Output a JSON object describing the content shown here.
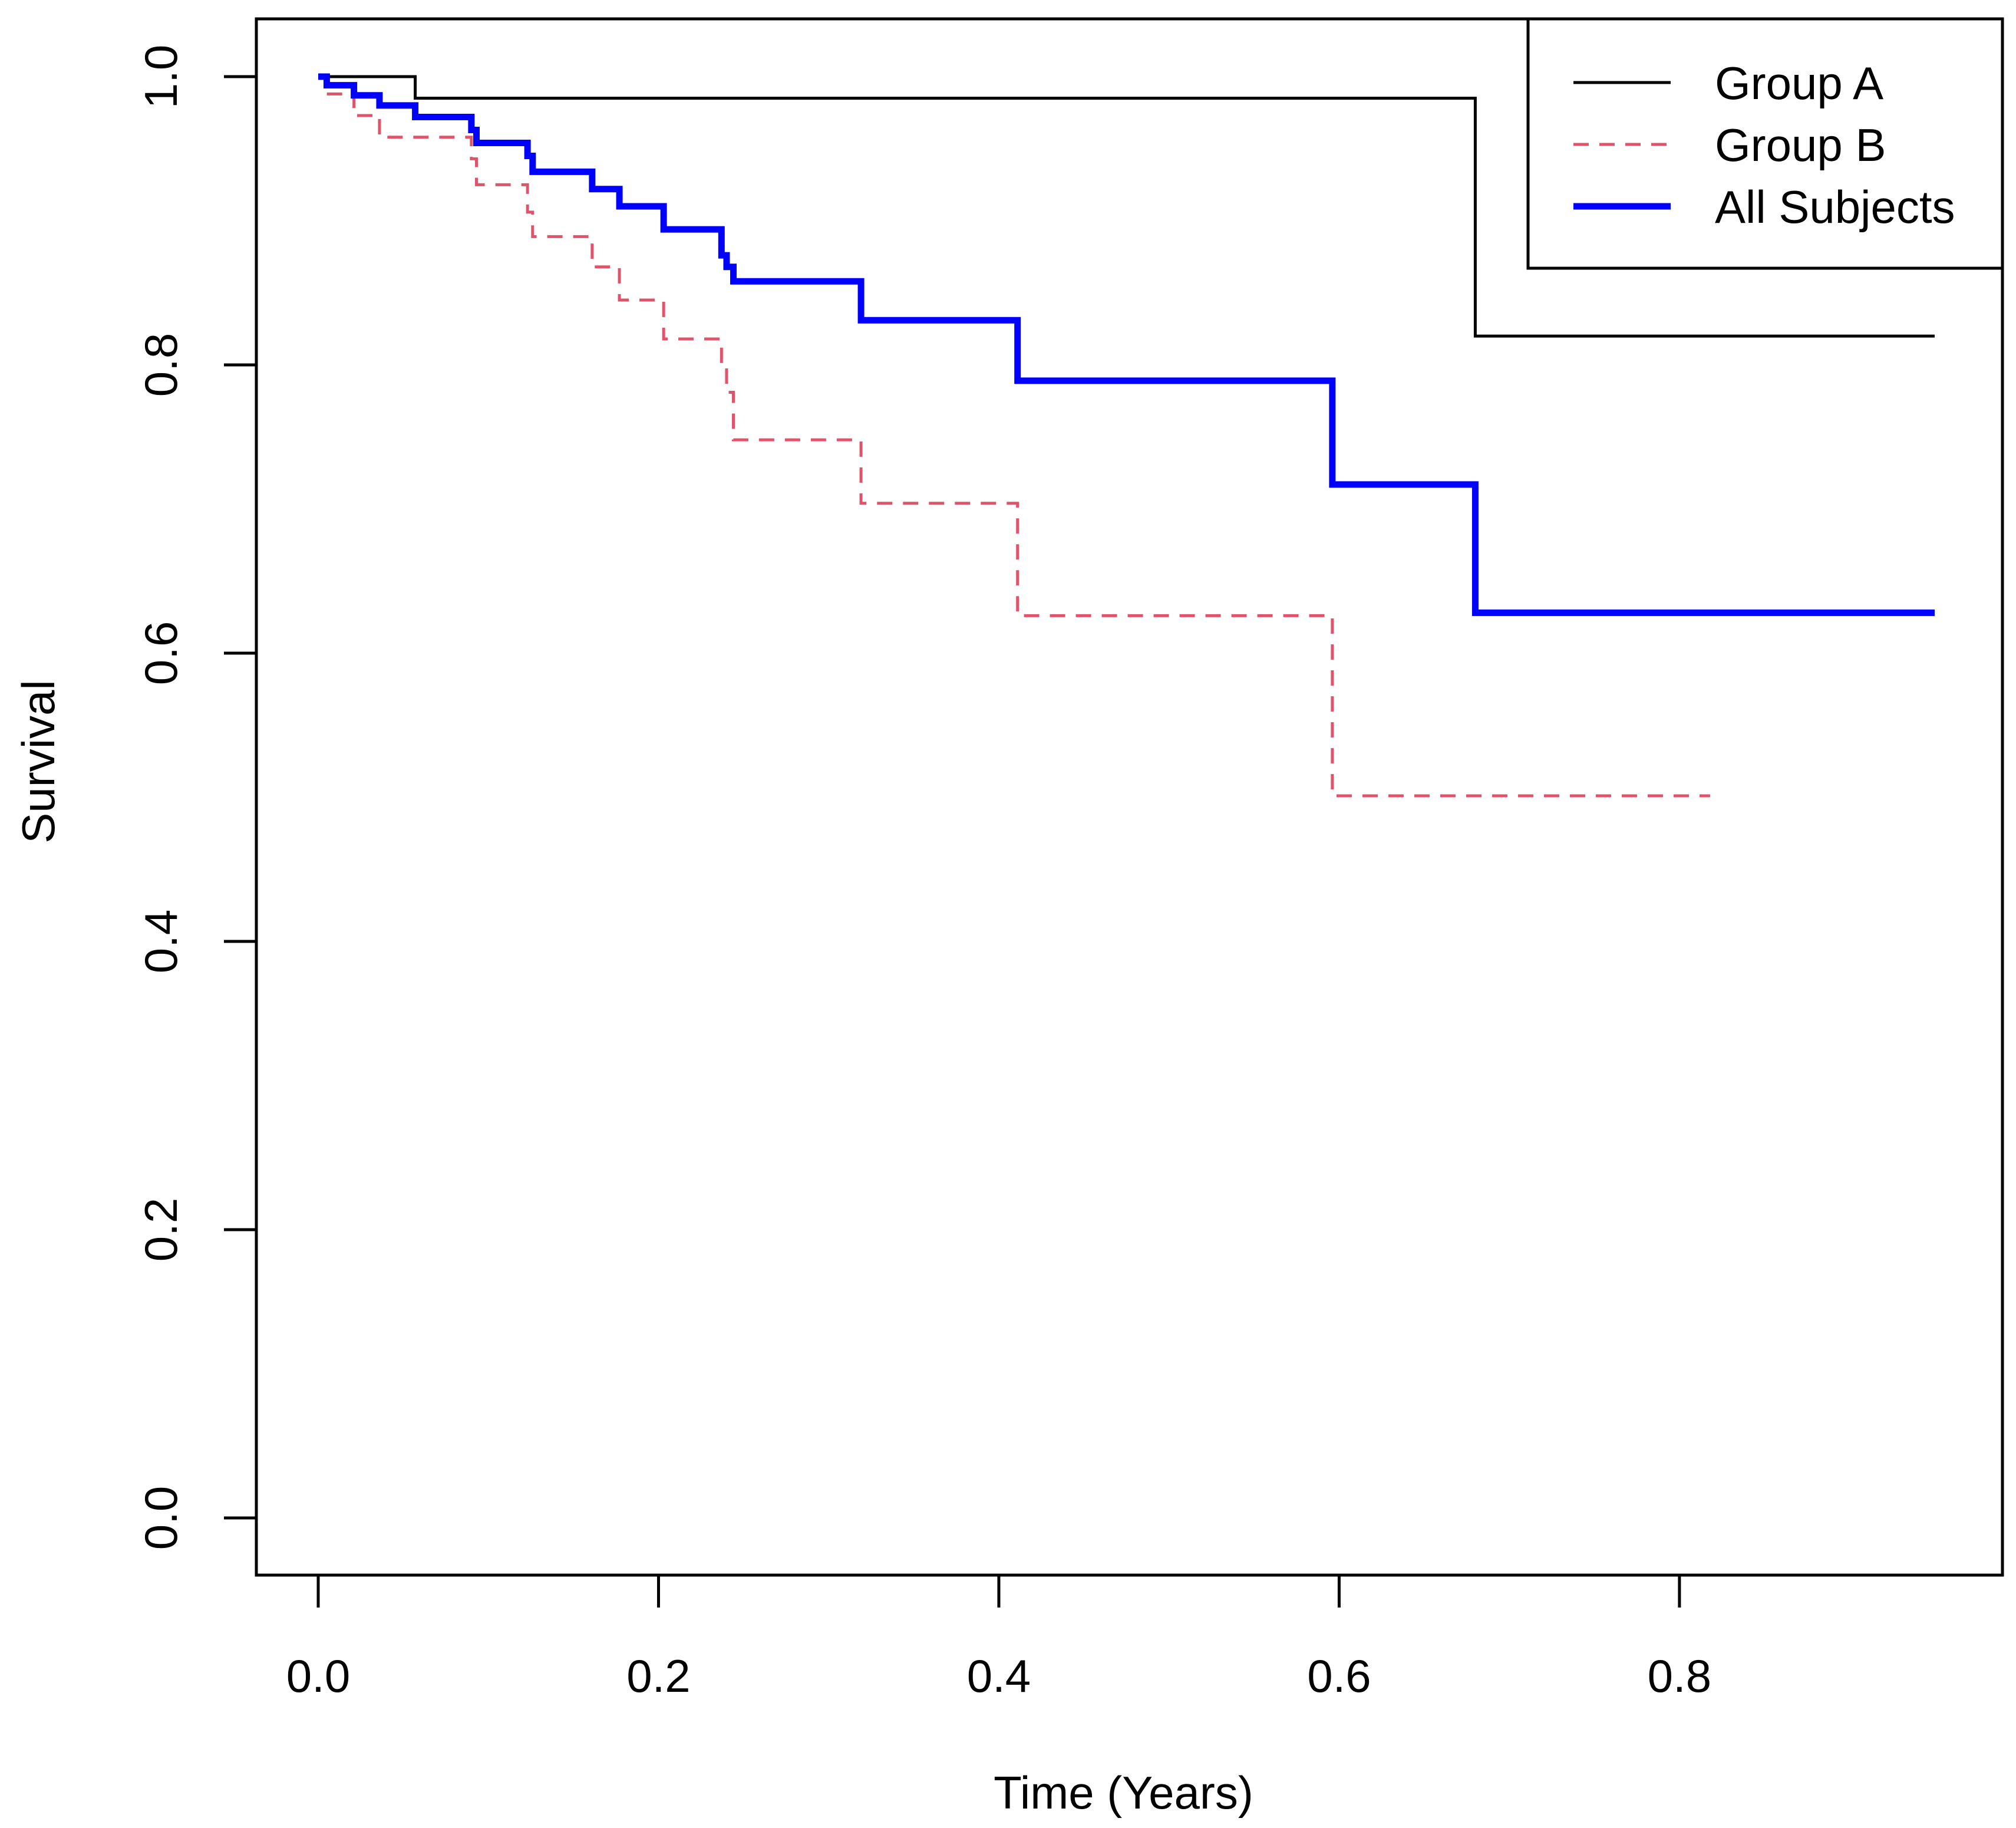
{
  "chart_data": {
    "type": "line",
    "step": true,
    "title": "",
    "xlabel": "Time (Years)",
    "ylabel": "Survival",
    "xlim": [
      -0.038,
      0.988
    ],
    "ylim": [
      -0.04,
      1.04
    ],
    "xticks": [
      0.0,
      0.2,
      0.4,
      0.6,
      0.8
    ],
    "xtick_labels": [
      "0.0",
      "0.2",
      "0.4",
      "0.6",
      "0.8"
    ],
    "yticks": [
      0.0,
      0.2,
      0.4,
      0.6,
      0.8,
      1.0
    ],
    "ytick_labels": [
      "0.0",
      "0.2",
      "0.4",
      "0.6",
      "0.8",
      "1.0"
    ],
    "grid": false,
    "legend_position": "top-right",
    "series": [
      {
        "name": "Group A",
        "color": "#000000",
        "style": "solid",
        "weight": "thin",
        "x": [
          0.0,
          0.057,
          0.68,
          0.95
        ],
        "y": [
          1.0,
          0.985,
          0.82,
          0.82
        ]
      },
      {
        "name": "Group B",
        "color": "#DF536B",
        "style": "dashed",
        "weight": "thin",
        "x": [
          0.0,
          0.005,
          0.021,
          0.036,
          0.09,
          0.093,
          0.123,
          0.126,
          0.161,
          0.177,
          0.203,
          0.237,
          0.24,
          0.244,
          0.319,
          0.411,
          0.596,
          0.818
        ],
        "y": [
          1.0,
          0.988,
          0.973,
          0.958,
          0.943,
          0.925,
          0.906,
          0.889,
          0.868,
          0.845,
          0.818,
          0.8,
          0.781,
          0.748,
          0.704,
          0.626,
          0.501,
          0.501
        ]
      },
      {
        "name": "All Subjects",
        "color": "#0000FF",
        "style": "solid",
        "weight": "thick",
        "x": [
          0.0,
          0.005,
          0.021,
          0.036,
          0.057,
          0.09,
          0.093,
          0.123,
          0.126,
          0.161,
          0.177,
          0.203,
          0.237,
          0.24,
          0.244,
          0.319,
          0.411,
          0.596,
          0.68,
          0.95
        ],
        "y": [
          1.0,
          0.994,
          0.987,
          0.98,
          0.972,
          0.963,
          0.954,
          0.945,
          0.934,
          0.922,
          0.91,
          0.894,
          0.876,
          0.868,
          0.858,
          0.831,
          0.789,
          0.717,
          0.628,
          0.628
        ]
      }
    ]
  }
}
